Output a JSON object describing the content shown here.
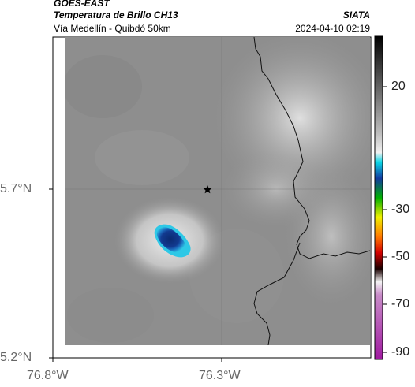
{
  "header": {
    "satellite": "GOES-EAST",
    "product": "Temperatura de Brillo CH13",
    "region": "Vía Medellín - Quibdó 50km",
    "org": "SIATA",
    "datetime": "2024-04-10 02:19"
  },
  "axes": {
    "y_ticks": [
      "5.7°N",
      "5.2°N"
    ],
    "x_ticks": [
      "76.8°W",
      "76.3°W"
    ]
  },
  "colorbar": {
    "ticks": [
      "20",
      "-30",
      "-50",
      "-70",
      "-90"
    ],
    "units": ""
  },
  "marker": {
    "icon": "star-icon"
  },
  "colors": {
    "background_gray": "#8f8f8f",
    "cloud_light": "#e6e6e6",
    "storm_core": "#0a2a6e",
    "storm_edge": "#28c8e0",
    "coast_line": "#000000"
  }
}
